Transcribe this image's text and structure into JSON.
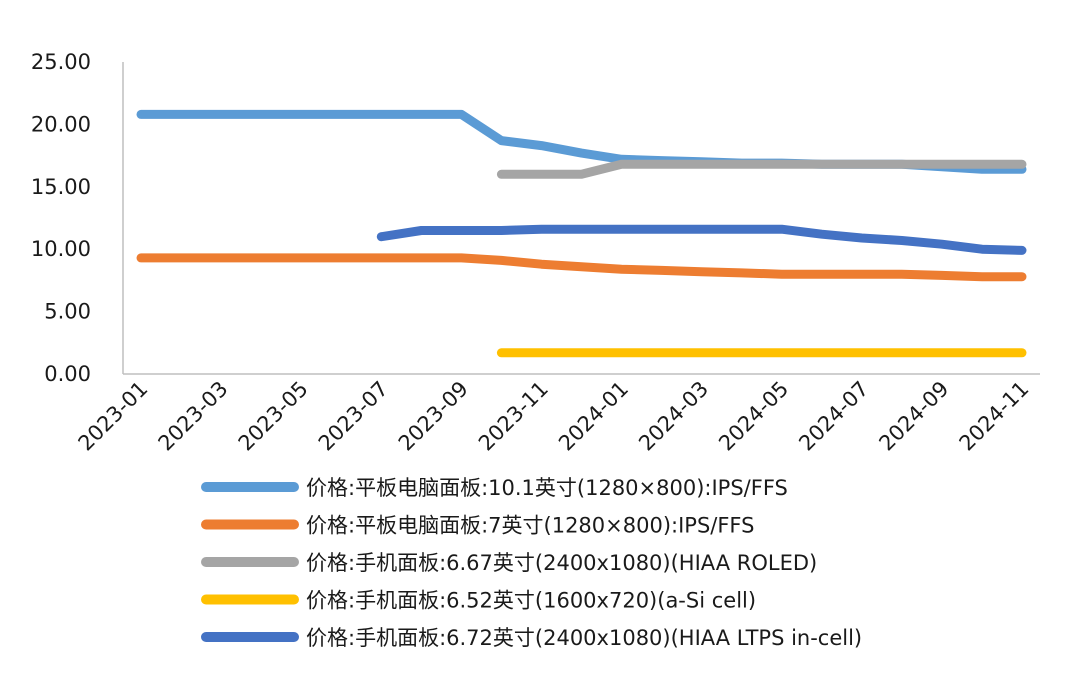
{
  "chart_data": {
    "type": "line",
    "title": "",
    "xlabel": "",
    "ylabel": "",
    "x": [
      "2023-01",
      "2023-02",
      "2023-03",
      "2023-04",
      "2023-05",
      "2023-06",
      "2023-07",
      "2023-08",
      "2023-09",
      "2023-10",
      "2023-11",
      "2023-12",
      "2024-01",
      "2024-02",
      "2024-03",
      "2024-04",
      "2024-05",
      "2024-06",
      "2024-07",
      "2024-08",
      "2024-09",
      "2024-10",
      "2024-11"
    ],
    "x_tick_labels": [
      "2023-01",
      "2023-03",
      "2023-05",
      "2023-07",
      "2023-09",
      "2023-11",
      "2024-01",
      "2024-03",
      "2024-05",
      "2024-07",
      "2024-09",
      "2024-11"
    ],
    "y_tick_labels": [
      "0.00",
      "5.00",
      "10.00",
      "15.00",
      "20.00",
      "25.00"
    ],
    "ylim": [
      0,
      25
    ],
    "grid": false,
    "legend_position": "bottom",
    "series": [
      {
        "name": "价格:平板电脑面板:10.1英寸(1280×800):IPS/FFS",
        "color": "#5b9bd5",
        "values": [
          20.8,
          20.8,
          20.8,
          20.8,
          20.8,
          20.8,
          20.8,
          20.8,
          20.8,
          18.7,
          18.3,
          17.7,
          17.2,
          17.1,
          17.0,
          16.9,
          16.9,
          16.8,
          16.8,
          16.8,
          16.6,
          16.4,
          16.4
        ]
      },
      {
        "name": "价格:平板电脑面板:7英寸(1280×800):IPS/FFS",
        "color": "#ed7d31",
        "values": [
          9.3,
          9.3,
          9.3,
          9.3,
          9.3,
          9.3,
          9.3,
          9.3,
          9.3,
          9.1,
          8.8,
          8.6,
          8.4,
          8.3,
          8.2,
          8.1,
          8.0,
          8.0,
          8.0,
          8.0,
          7.9,
          7.8,
          7.8
        ]
      },
      {
        "name": "价格:手机面板:6.67英寸(2400x1080)(HIAA ROLED)",
        "color": "#a5a5a5",
        "values": [
          null,
          null,
          null,
          null,
          null,
          null,
          null,
          null,
          null,
          16.0,
          16.0,
          16.0,
          16.8,
          16.8,
          16.8,
          16.8,
          16.8,
          16.8,
          16.8,
          16.8,
          16.8,
          16.8,
          16.8
        ]
      },
      {
        "name": "价格:手机面板:6.52英寸(1600x720)(a-Si cell)",
        "color": "#ffc000",
        "values": [
          null,
          null,
          null,
          null,
          null,
          null,
          null,
          null,
          null,
          1.7,
          1.7,
          1.7,
          1.7,
          1.7,
          1.7,
          1.7,
          1.7,
          1.7,
          1.7,
          1.7,
          1.7,
          1.7,
          1.7
        ]
      },
      {
        "name": "价格:手机面板:6.72英寸(2400x1080)(HIAA LTPS in-cell)",
        "color": "#4472c4",
        "values": [
          null,
          null,
          null,
          null,
          null,
          null,
          11.0,
          11.5,
          11.5,
          11.5,
          11.6,
          11.6,
          11.6,
          11.6,
          11.6,
          11.6,
          11.6,
          11.2,
          10.9,
          10.7,
          10.4,
          10.0,
          9.9
        ]
      }
    ]
  }
}
